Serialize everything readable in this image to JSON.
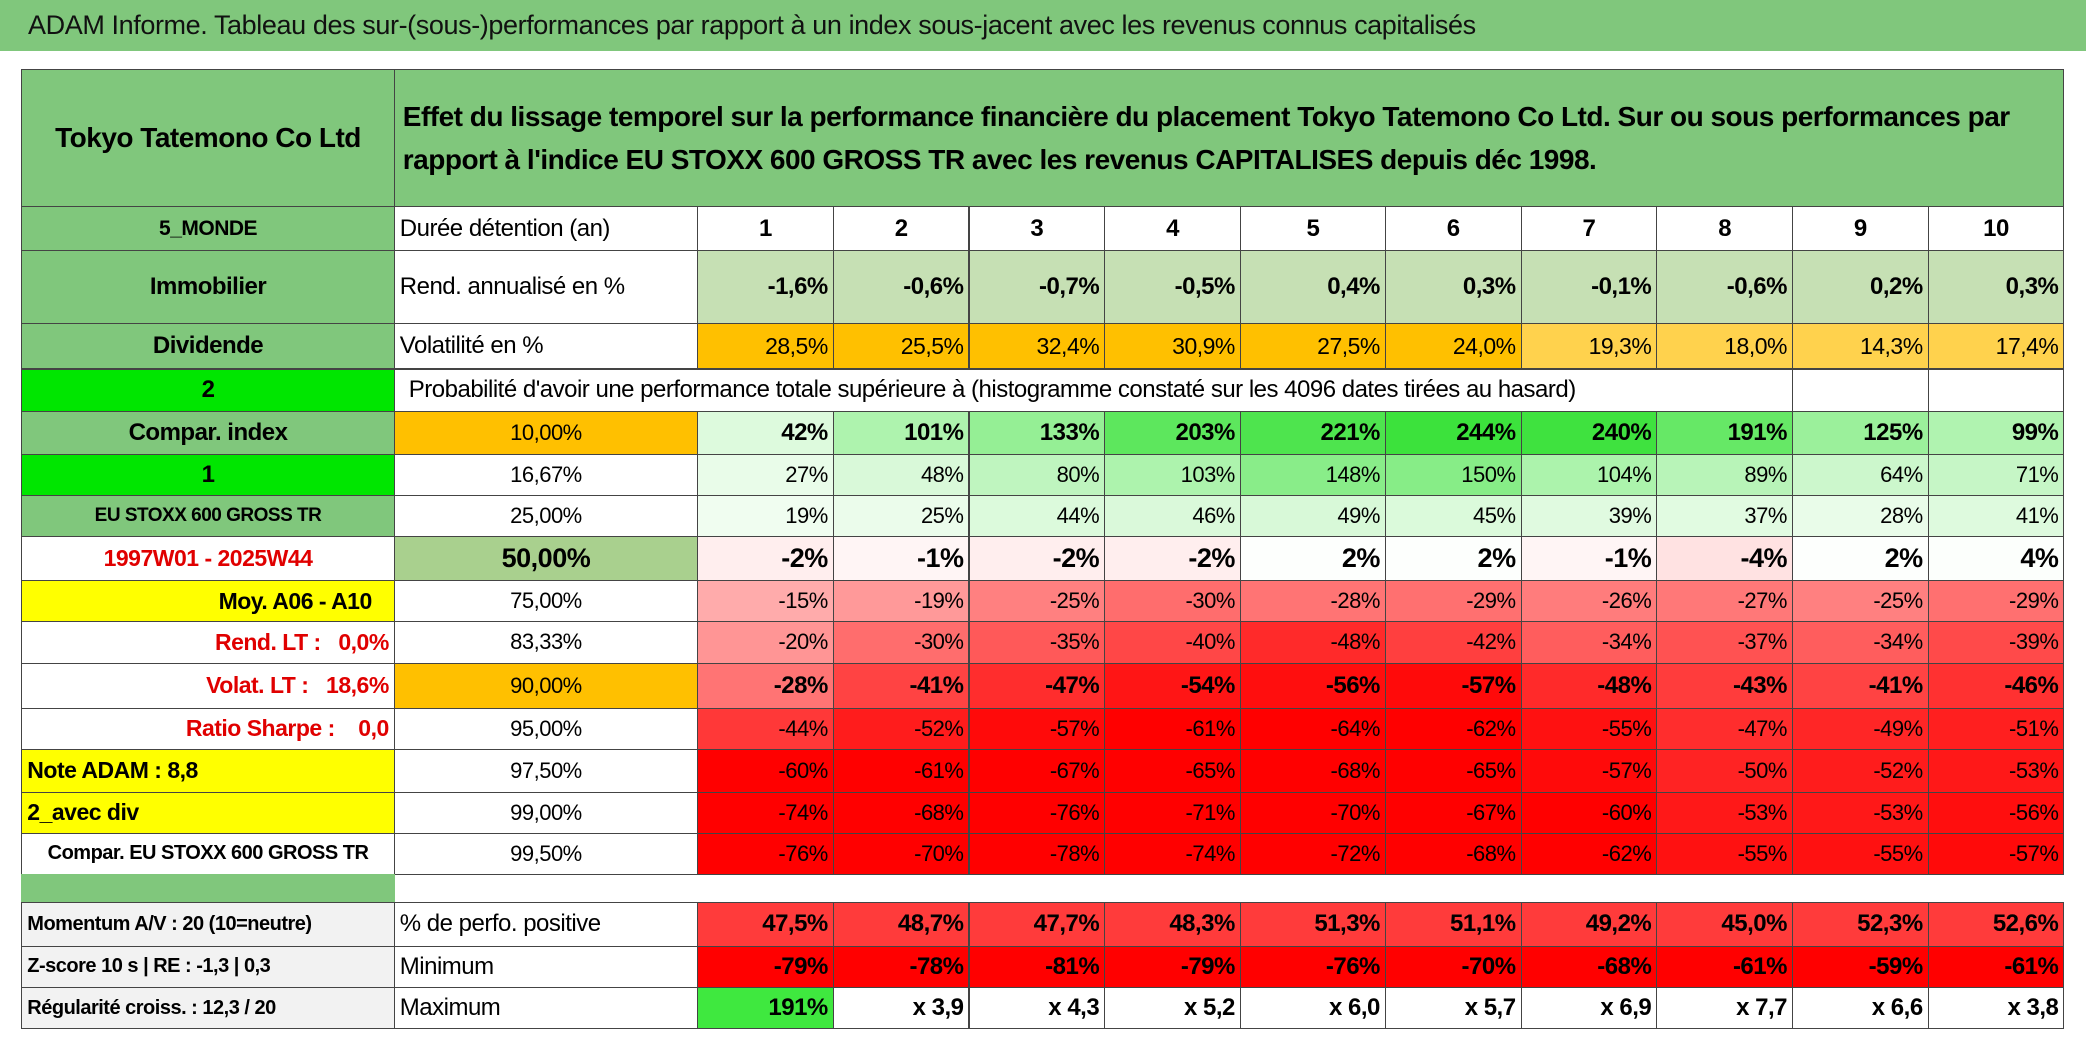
{
  "title": "ADAM Informe. Tableau des sur-(sous-)performances par rapport à un index sous-jacent avec les revenus connus capitalisés",
  "header": {
    "left": "Tokyo Tatemono Co Ltd",
    "right": "Effet du lissage temporel sur la performance financière du placement Tokyo Tatemono Co Ltd. Sur ou sous performances par rapport à l'indice EU STOXX 600 GROSS TR avec les revenus CAPITALISES depuis déc 1998."
  },
  "rows": [
    [
      "5_MONDE",
      "Durée détention (an)",
      "1",
      "2",
      "3",
      "4",
      "5",
      "6",
      "7",
      "8",
      "9",
      "10"
    ],
    [
      "Immobilier",
      "Rend. annualisé en %",
      "-1,6%",
      "-0,6%",
      "-0,7%",
      "-0,5%",
      "0,4%",
      "0,3%",
      "-0,1%",
      "-0,6%",
      "0,2%",
      "0,3%"
    ],
    [
      "Dividende",
      "Volatilité en %",
      "28,5%",
      "25,5%",
      "32,4%",
      "30,9%",
      "27,5%",
      "24,0%",
      "19,3%",
      "18,0%",
      "14,3%",
      "17,4%"
    ],
    [
      "2",
      "Probabilité d'avoir une performance totale supérieure à (histogramme constaté sur les 4096 dates tirées au hasard)"
    ],
    [
      "Compar. index",
      "10,00%",
      "42%",
      "101%",
      "133%",
      "203%",
      "221%",
      "244%",
      "240%",
      "191%",
      "125%",
      "99%"
    ],
    [
      "1",
      "16,67%",
      "27%",
      "48%",
      "80%",
      "103%",
      "148%",
      "150%",
      "104%",
      "89%",
      "64%",
      "71%"
    ],
    [
      "EU STOXX 600 GROSS TR",
      "25,00%",
      "19%",
      "25%",
      "44%",
      "46%",
      "49%",
      "45%",
      "39%",
      "37%",
      "28%",
      "41%"
    ],
    [
      "1997W01 - 2025W44",
      "50,00%",
      "-2%",
      "-1%",
      "-2%",
      "-2%",
      "2%",
      "2%",
      "-1%",
      "-4%",
      "2%",
      "4%"
    ],
    [
      "Moy. A06 - A10",
      "75,00%",
      "-15%",
      "-19%",
      "-25%",
      "-30%",
      "-28%",
      "-29%",
      "-26%",
      "-27%",
      "-25%",
      "-29%"
    ],
    [
      "Rend. LT :   0,0%",
      "83,33%",
      "-20%",
      "-30%",
      "-35%",
      "-40%",
      "-48%",
      "-42%",
      "-34%",
      "-37%",
      "-34%",
      "-39%"
    ],
    [
      "Volat. LT :   18,6%",
      "90,00%",
      "-28%",
      "-41%",
      "-47%",
      "-54%",
      "-56%",
      "-57%",
      "-48%",
      "-43%",
      "-41%",
      "-46%"
    ],
    [
      "Ratio Sharpe :    0,0",
      "95,00%",
      "-44%",
      "-52%",
      "-57%",
      "-61%",
      "-64%",
      "-62%",
      "-55%",
      "-47%",
      "-49%",
      "-51%"
    ],
    [
      "Note ADAM : 8,8",
      "97,50%",
      "-60%",
      "-61%",
      "-67%",
      "-65%",
      "-68%",
      "-65%",
      "-57%",
      "-50%",
      "-52%",
      "-53%"
    ],
    [
      "2_avec div",
      "99,00%",
      "-74%",
      "-68%",
      "-76%",
      "-71%",
      "-70%",
      "-67%",
      "-60%",
      "-53%",
      "-53%",
      "-56%"
    ],
    [
      "Compar. EU STOXX 600 GROSS TR",
      "99,50%",
      "-76%",
      "-70%",
      "-78%",
      "-74%",
      "-72%",
      "-68%",
      "-62%",
      "-55%",
      "-55%",
      "-57%"
    ]
  ],
  "stats": [
    [
      "Momentum A/V : 20 (10=neutre)",
      "% de perfo. positive",
      "47,5%",
      "48,7%",
      "47,7%",
      "48,3%",
      "51,3%",
      "51,1%",
      "49,2%",
      "45,0%",
      "52,3%",
      "52,6%"
    ],
    [
      "Z-score 10 s | RE : -1,3 | 0,3",
      "Minimum",
      "-79%",
      "-78%",
      "-81%",
      "-79%",
      "-76%",
      "-70%",
      "-68%",
      "-61%",
      "-59%",
      "-61%"
    ],
    [
      "Régularité croiss. : 12,3 / 20",
      "Maximum",
      "191%",
      "x 3,9",
      "x 4,3",
      "x 5,2",
      "x 6,0",
      "x 5,7",
      "x 6,9",
      "x 7,7",
      "x 6,6",
      "x 3,8"
    ]
  ]
}
